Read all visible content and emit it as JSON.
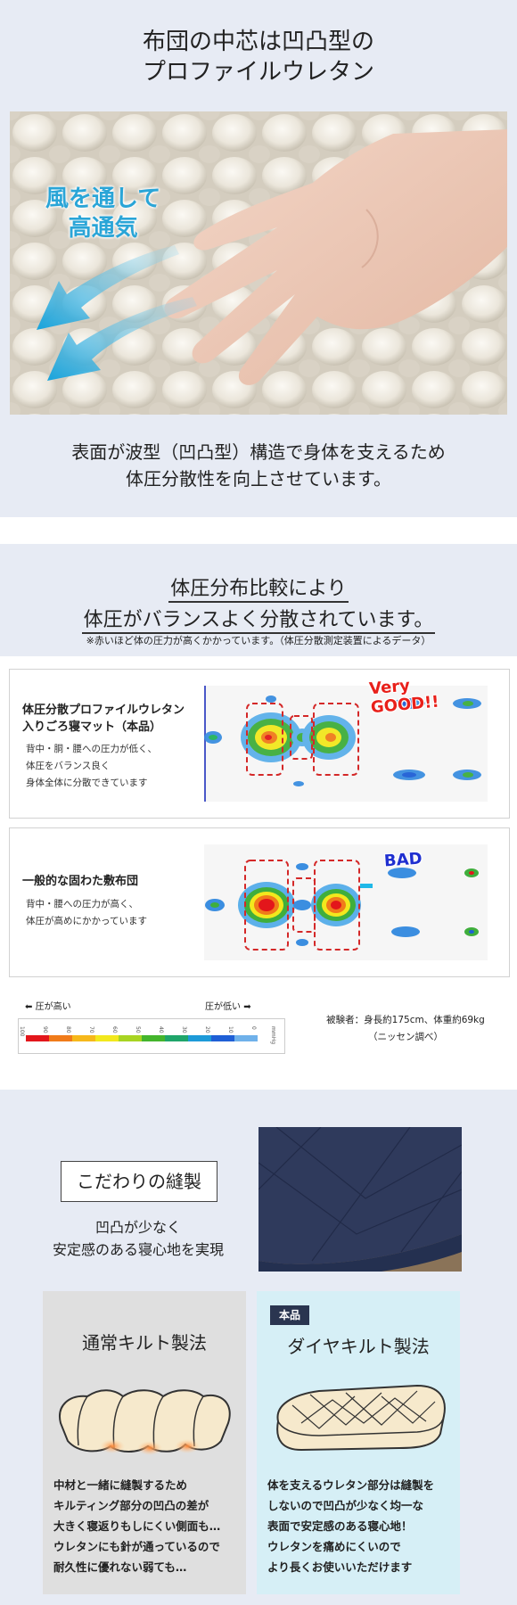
{
  "section1": {
    "title": [
      "布団の中芯は凹凸型の",
      "プロファイルウレタン"
    ],
    "overlay": [
      "風を通して",
      "高通気"
    ],
    "description": [
      "表面が波型（凹凸型）構造で身体を支えるため",
      "体圧分散性を向上させています。"
    ]
  },
  "section2": {
    "title_line1": "体圧分布比較により",
    "title_line2": "体圧がバランスよく分散されています。",
    "note": "※赤いほど体の圧力が高くかかっています。（体圧分散測定装置によるデータ）",
    "product": {
      "title": [
        "体圧分散プロファイルウレタン",
        "入りごろ寝マット（本品）"
      ],
      "desc": [
        "背中・胴・腰への圧力が低く、",
        "体圧をバランス良く",
        "身体全体に分散できています"
      ],
      "stamp": [
        "Very",
        "GOOD!!"
      ],
      "stamp_color": "#e8201a"
    },
    "regular": {
      "title": "一般的な固わた敷布団",
      "desc": [
        "背中・腰への圧力が高く、",
        "体圧が高めにかかっています"
      ],
      "stamp": "BAD",
      "stamp_color": "#1f2fd0"
    },
    "legend": {
      "high": "圧が高い",
      "low": "圧が低い",
      "ticks": [
        "100",
        "90",
        "80",
        "70",
        "60",
        "50",
        "40",
        "30",
        "20",
        "10",
        "0"
      ],
      "unit": "mmHg",
      "colors": [
        "#e3161b",
        "#f07b1a",
        "#f6b81b",
        "#f2e81d",
        "#a8d422",
        "#44b52c",
        "#1fa56a",
        "#1d9ad8",
        "#1f5fd6",
        "#6fb1ea",
        "#ffffff"
      ]
    },
    "tester": [
      "被験者：身長約175cm、体重約69kg",
      "（ニッセン調べ）"
    ]
  },
  "section3": {
    "heading": "こだわりの縫製",
    "sub": [
      "凹凸が少なく",
      "安定感のある寝心地を実現"
    ],
    "normal": {
      "title": "通常キルト製法",
      "text": [
        "中材と一緒に縫製するため",
        "キルティング部分の凹凸の差が",
        "大きく寝返りもしにくい側面も…",
        "ウレタンにも針が通っているので",
        "耐久性に優れない弱ても…"
      ]
    },
    "diamond": {
      "badge": "本品",
      "title": "ダイヤキルト製法",
      "text": [
        "体を支えるウレタン部分は縫製を",
        "しないので凹凸が少なく均一な",
        "表面で安定感のある寝心地！",
        "ウレタンを痛めにくいので",
        "より長くお使いいただけます"
      ]
    }
  }
}
